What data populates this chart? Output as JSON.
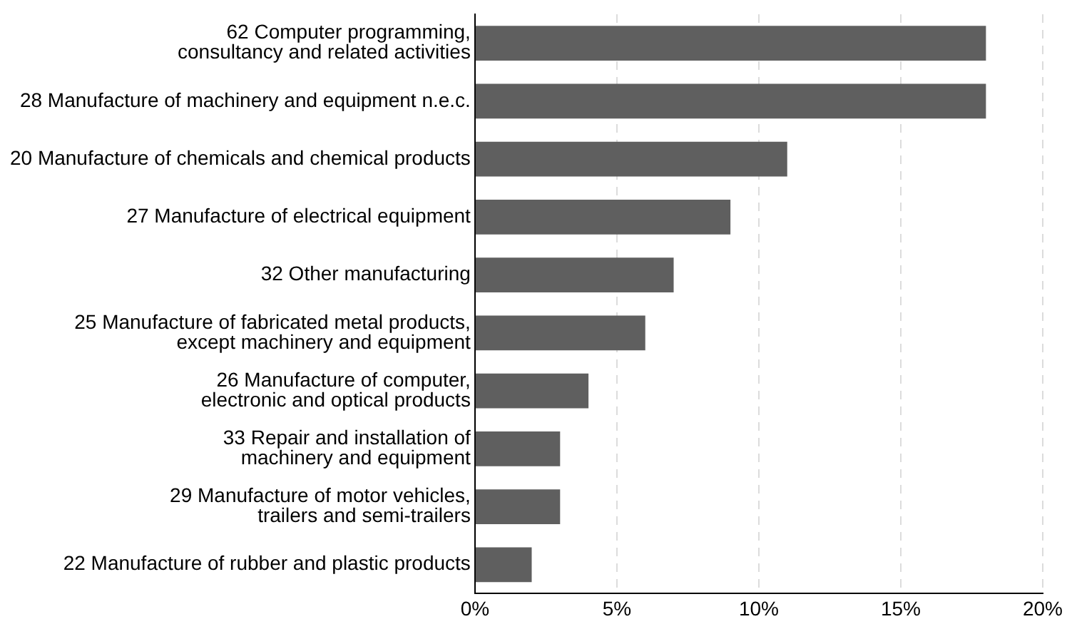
{
  "chart_data": {
    "type": "bar",
    "orientation": "horizontal",
    "categories": [
      "62 Computer programming,\nconsultancy and related activities",
      "28 Manufacture of machinery and equipment n.e.c.",
      "20 Manufacture of chemicals and chemical products",
      "27 Manufacture of electrical equipment",
      "32 Other manufacturing",
      "25 Manufacture of fabricated metal products,\nexcept machinery and equipment",
      "26 Manufacture of computer,\nelectronic and optical products",
      "33 Repair and installation of\nmachinery and equipment",
      "29 Manufacture of motor vehicles,\ntrailers and semi-trailers",
      "22 Manufacture of rubber and plastic products"
    ],
    "values": [
      18,
      18,
      11,
      9,
      7,
      6,
      4,
      3,
      3,
      2
    ],
    "color": "#5f5f5f",
    "xlim": [
      0,
      20
    ],
    "xticks": [
      {
        "value": 0,
        "label": "0%"
      },
      {
        "value": 5,
        "label": "5%"
      },
      {
        "value": 10,
        "label": "10%"
      },
      {
        "value": 15,
        "label": "15%"
      },
      {
        "value": 20,
        "label": "20%"
      }
    ],
    "grid": "x",
    "legend": false
  }
}
